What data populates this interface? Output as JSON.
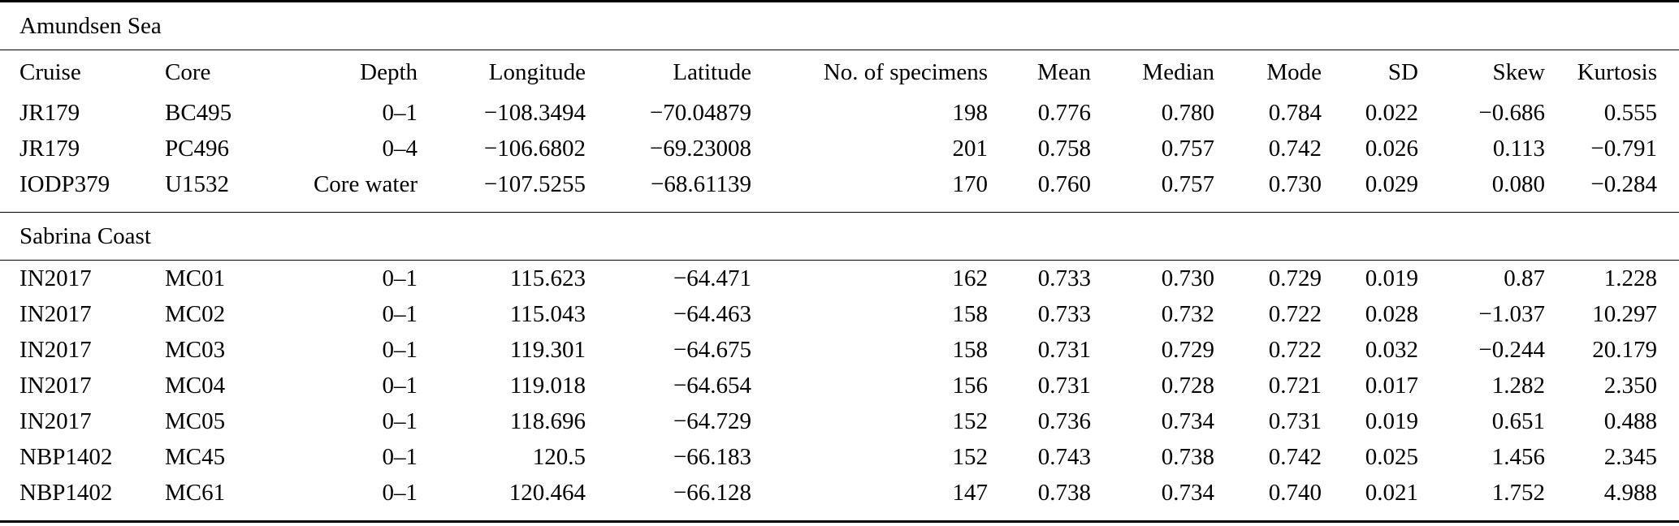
{
  "table": {
    "colors": {
      "text": "#000000",
      "background": "#ffffff",
      "rule": "#000000"
    },
    "columns": [
      {
        "key": "cruise",
        "label": "Cruise",
        "align": "left"
      },
      {
        "key": "core",
        "label": "Core",
        "align": "left"
      },
      {
        "key": "depth",
        "label": "Depth",
        "align": "right"
      },
      {
        "key": "longitude",
        "label": "Longitude",
        "align": "right"
      },
      {
        "key": "latitude",
        "label": "Latitude",
        "align": "right"
      },
      {
        "key": "specimens",
        "label": "No. of specimens",
        "align": "right"
      },
      {
        "key": "mean",
        "label": "Mean",
        "align": "right"
      },
      {
        "key": "median",
        "label": "Median",
        "align": "right"
      },
      {
        "key": "mode",
        "label": "Mode",
        "align": "right"
      },
      {
        "key": "sd",
        "label": "SD",
        "align": "right"
      },
      {
        "key": "skew",
        "label": "Skew",
        "align": "right"
      },
      {
        "key": "kurtosis",
        "label": "Kurtosis",
        "align": "right"
      }
    ],
    "sections": [
      {
        "title": "Amundsen Sea",
        "show_header": true,
        "rows": [
          [
            "JR179",
            "BC495",
            "0–1",
            "−108.3494",
            "−70.04879",
            "198",
            "0.776",
            "0.780",
            "0.784",
            "0.022",
            "−0.686",
            "0.555"
          ],
          [
            "JR179",
            "PC496",
            "0–4",
            "−106.6802",
            "−69.23008",
            "201",
            "0.758",
            "0.757",
            "0.742",
            "0.026",
            "0.113",
            "−0.791"
          ],
          [
            "IODP379",
            "U1532",
            "Core water",
            "−107.5255",
            "−68.61139",
            "170",
            "0.760",
            "0.757",
            "0.730",
            "0.029",
            "0.080",
            "−0.284"
          ]
        ]
      },
      {
        "title": "Sabrina Coast",
        "show_header": false,
        "rows": [
          [
            "IN2017",
            "MC01",
            "0–1",
            "115.623",
            "−64.471",
            "162",
            "0.733",
            "0.730",
            "0.729",
            "0.019",
            "0.87",
            "1.228"
          ],
          [
            "IN2017",
            "MC02",
            "0–1",
            "115.043",
            "−64.463",
            "158",
            "0.733",
            "0.732",
            "0.722",
            "0.028",
            "−1.037",
            "10.297"
          ],
          [
            "IN2017",
            "MC03",
            "0–1",
            "119.301",
            "−64.675",
            "158",
            "0.731",
            "0.729",
            "0.722",
            "0.032",
            "−0.244",
            "20.179"
          ],
          [
            "IN2017",
            "MC04",
            "0–1",
            "119.018",
            "−64.654",
            "156",
            "0.731",
            "0.728",
            "0.721",
            "0.017",
            "1.282",
            "2.350"
          ],
          [
            "IN2017",
            "MC05",
            "0–1",
            "118.696",
            "−64.729",
            "152",
            "0.736",
            "0.734",
            "0.731",
            "0.019",
            "0.651",
            "0.488"
          ],
          [
            "NBP1402",
            "MC45",
            "0–1",
            "120.5",
            "−66.183",
            "152",
            "0.743",
            "0.738",
            "0.742",
            "0.025",
            "1.456",
            "2.345"
          ],
          [
            "NBP1402",
            "MC61",
            "0–1",
            "120.464",
            "−66.128",
            "147",
            "0.738",
            "0.734",
            "0.740",
            "0.021",
            "1.752",
            "4.988"
          ]
        ]
      }
    ]
  }
}
